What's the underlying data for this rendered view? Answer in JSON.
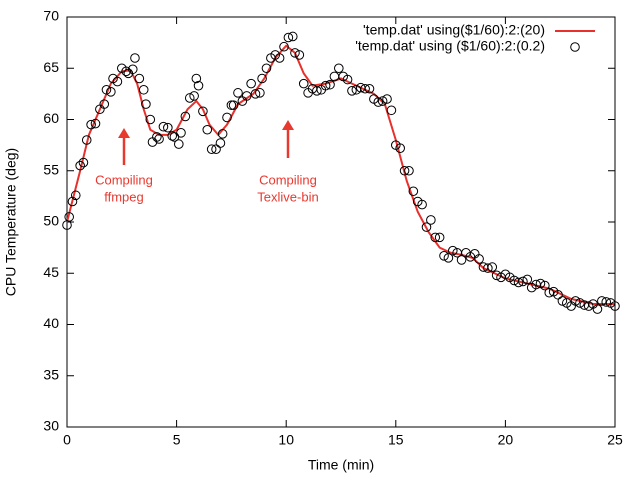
{
  "chart_data": {
    "type": "line",
    "xlabel": "Time (min)",
    "ylabel": "CPU Temperature (deg)",
    "xlim": [
      0,
      25
    ],
    "xticks": [
      0,
      5,
      10,
      15,
      20,
      25
    ],
    "ylim": [
      30,
      70
    ],
    "yticks": [
      30,
      35,
      40,
      45,
      50,
      55,
      60,
      65,
      70
    ],
    "annotations": [
      {
        "lines": [
          "Compiling",
          "ffmpeg"
        ],
        "color": "#e8392f"
      },
      {
        "lines": [
          "Compiling",
          "Texlive-bin"
        ],
        "color": "#e8392f"
      }
    ],
    "series": [
      {
        "name": "'temp.dat' using($1/60):2:(20)",
        "type": "line",
        "color": "#e8302c",
        "x": [
          0,
          0.3,
          0.6,
          1,
          1.5,
          2,
          2.5,
          2.9,
          3.2,
          3.5,
          3.8,
          4.2,
          4.6,
          5,
          5.5,
          5.9,
          6.2,
          6.5,
          6.9,
          7.3,
          7.8,
          8.5,
          9,
          9.5,
          10,
          10.4,
          10.8,
          11.2,
          11.8,
          12.5,
          13,
          13.5,
          14,
          14.5,
          15,
          15.5,
          16,
          16.5,
          17,
          17.5,
          18,
          18.5,
          19,
          19.5,
          20,
          21,
          22,
          23,
          24,
          25
        ],
        "values": [
          50,
          52.5,
          55,
          58.5,
          61,
          63.5,
          64.7,
          64.8,
          63.5,
          61,
          59,
          58.5,
          58.5,
          59,
          61,
          61.8,
          61,
          59.5,
          58.5,
          59.5,
          61.5,
          62.5,
          64,
          66,
          67.2,
          66.5,
          64.5,
          63.3,
          63.5,
          64,
          63.5,
          63,
          62.5,
          61.5,
          58,
          54,
          51,
          49,
          47.5,
          47,
          46.8,
          46.5,
          45.5,
          45,
          44.5,
          44,
          43.5,
          42.5,
          42,
          42
        ]
      },
      {
        "name": "'temp.dat' using ($1/60):2:(0.2)",
        "type": "scatter",
        "color": "#000000",
        "x": [
          0,
          0.1,
          0.25,
          0.4,
          0.6,
          0.75,
          0.9,
          1.1,
          1.3,
          1.5,
          1.7,
          1.8,
          2.0,
          2.1,
          2.3,
          2.5,
          2.7,
          2.8,
          3.0,
          3.1,
          3.3,
          3.5,
          3.6,
          3.8,
          3.9,
          4.1,
          4.2,
          4.4,
          4.6,
          4.8,
          4.9,
          5.1,
          5.2,
          5.4,
          5.6,
          5.8,
          5.9,
          6.0,
          6.2,
          6.4,
          6.6,
          6.8,
          7.0,
          7.1,
          7.3,
          7.5,
          7.6,
          7.8,
          8.0,
          8.2,
          8.4,
          8.6,
          8.8,
          8.9,
          9.1,
          9.3,
          9.5,
          9.7,
          9.9,
          10.1,
          10.3,
          10.4,
          10.6,
          10.8,
          11.0,
          11.2,
          11.4,
          11.6,
          11.8,
          12.0,
          12.2,
          12.4,
          12.6,
          12.8,
          13.0,
          13.2,
          13.4,
          13.6,
          13.8,
          14.0,
          14.2,
          14.4,
          14.6,
          14.8,
          15.0,
          15.2,
          15.4,
          15.6,
          15.8,
          16.0,
          16.2,
          16.4,
          16.6,
          16.8,
          17.0,
          17.2,
          17.4,
          17.6,
          17.8,
          18.0,
          18.2,
          18.4,
          18.6,
          18.8,
          19.0,
          19.2,
          19.4,
          19.6,
          19.8,
          20.0,
          20.2,
          20.4,
          20.6,
          20.8,
          21.0,
          21.2,
          21.4,
          21.6,
          21.8,
          22.0,
          22.2,
          22.4,
          22.6,
          22.8,
          23.0,
          23.2,
          23.4,
          23.6,
          23.8,
          24.0,
          24.2,
          24.4,
          24.6,
          24.8,
          25.0
        ],
        "values": [
          49.7,
          50.5,
          52,
          52.6,
          55.5,
          55.8,
          58,
          59.5,
          59.6,
          61,
          61.5,
          62.9,
          62.7,
          64,
          63.7,
          65,
          64.7,
          64.5,
          64.9,
          66,
          64,
          62.9,
          61.5,
          60,
          57.8,
          58.3,
          58.1,
          59.3,
          59.2,
          58.4,
          58.3,
          57.6,
          58.7,
          60.3,
          62.1,
          62.3,
          64,
          63.3,
          60.8,
          59,
          57.1,
          57.1,
          57.7,
          58.6,
          60.2,
          61.4,
          61.4,
          62.6,
          61.8,
          62.3,
          63.5,
          62.5,
          62.6,
          64,
          65,
          66,
          66.3,
          66,
          67.1,
          68,
          68.1,
          66.5,
          66.3,
          63.5,
          62.6,
          63,
          62.8,
          62.9,
          63.3,
          63.4,
          64.2,
          65,
          64.2,
          63.9,
          62.8,
          62.9,
          63.1,
          63,
          63,
          62,
          61.7,
          61.8,
          62,
          60.9,
          57.5,
          57.2,
          55,
          55,
          53,
          52,
          51.7,
          49.5,
          50.2,
          48.5,
          48.5,
          46.7,
          46.5,
          47.2,
          47,
          46.3,
          47,
          46.6,
          46.9,
          46.4,
          45.6,
          45.5,
          45.6,
          44.8,
          44.6,
          44.9,
          44.6,
          44.3,
          44.1,
          44.2,
          44.4,
          43.6,
          43.9,
          44,
          43.8,
          43.1,
          43.2,
          42.9,
          42.3,
          42.1,
          41.8,
          42.3,
          42.1,
          41.9,
          41.8,
          42,
          41.5,
          42.3,
          42.2,
          42.1,
          41.8
        ]
      }
    ]
  }
}
